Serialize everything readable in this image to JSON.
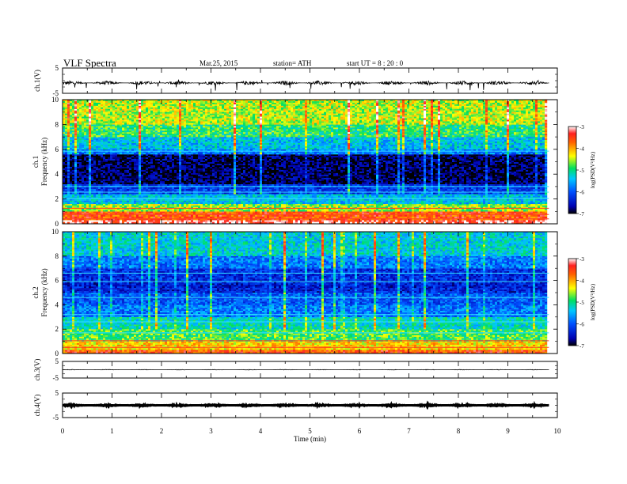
{
  "header": {
    "title": "VLF  Spectra",
    "date": "Mar.25, 2015",
    "station": "station= ATH",
    "start": "start  UT  =   8  : 20 : 0"
  },
  "chart_data": {
    "type": "heatmap",
    "x_axis": {
      "label": "Time  (min)",
      "range": [
        0,
        10
      ],
      "ticks": [
        "0",
        "1",
        "2",
        "3",
        "4",
        "5",
        "6",
        "7",
        "8",
        "9",
        "10"
      ],
      "data_end": 9.83
    },
    "panels": [
      {
        "id": "ch1-waveform",
        "type": "line",
        "ylabel": "ch.1(V)",
        "ylim": [
          -5,
          5
        ],
        "yticks": [
          "5",
          "-5"
        ],
        "baseline": -0.9,
        "noise_amplitude": 0.8,
        "spike_min": -4.0,
        "spike_max": 0.6
      },
      {
        "id": "ch1-spectrogram",
        "type": "heatmap",
        "ylabel_line1": "ch.1",
        "ylabel_line2": "Frequency  (kHz)",
        "ylim": [
          0,
          10
        ],
        "yticks": [
          "0",
          "2",
          "4",
          "6",
          "8",
          "10"
        ],
        "colorbar": {
          "label": "log(PSD(V²/Hz)",
          "range": [
            -7,
            -3
          ],
          "ticks": [
            "-3",
            "-4",
            "-5",
            "-6",
            "-7"
          ]
        },
        "bands_khz": [
          {
            "from": 0.0,
            "to": 0.3,
            "level": -3.2
          },
          {
            "from": 0.3,
            "to": 1.0,
            "level": -3.6
          },
          {
            "from": 1.0,
            "to": 1.6,
            "level": -4.6
          },
          {
            "from": 1.6,
            "to": 2.4,
            "level": -5.4
          },
          {
            "from": 2.4,
            "to": 3.2,
            "level": -6.2
          },
          {
            "from": 3.2,
            "to": 5.6,
            "level": -6.85
          },
          {
            "from": 5.6,
            "to": 6.0,
            "level": -5.8
          },
          {
            "from": 6.0,
            "to": 7.0,
            "level": -5.4
          },
          {
            "from": 7.0,
            "to": 8.0,
            "level": -4.9
          },
          {
            "from": 8.0,
            "to": 10.0,
            "level": -4.5
          }
        ]
      },
      {
        "id": "ch2-spectrogram",
        "type": "heatmap",
        "ylabel_line1": "ch.2",
        "ylabel_line2": "Frequency  (kHz)",
        "ylim": [
          0,
          10
        ],
        "yticks": [
          "0",
          "2",
          "4",
          "6",
          "8",
          "10"
        ],
        "colorbar": {
          "label": "log(PSD(V²/Hz)",
          "range": [
            -7,
            -3
          ],
          "ticks": [
            "-3",
            "-4",
            "-5",
            "-6",
            "-7"
          ]
        },
        "bands_khz": [
          {
            "from": 0.0,
            "to": 0.3,
            "level": -3.6
          },
          {
            "from": 0.3,
            "to": 1.0,
            "level": -4.2
          },
          {
            "from": 1.0,
            "to": 2.0,
            "level": -4.8
          },
          {
            "from": 2.0,
            "to": 3.0,
            "level": -5.2
          },
          {
            "from": 3.0,
            "to": 4.0,
            "level": -5.8
          },
          {
            "from": 4.0,
            "to": 5.0,
            "level": -6.0
          },
          {
            "from": 5.0,
            "to": 6.0,
            "level": -6.4
          },
          {
            "from": 6.0,
            "to": 7.0,
            "level": -6.3
          },
          {
            "from": 7.0,
            "to": 8.0,
            "level": -5.8
          },
          {
            "from": 8.0,
            "to": 10.0,
            "level": -5.3
          }
        ]
      },
      {
        "id": "ch3-waveform",
        "type": "line",
        "ylabel": "ch.3(V)",
        "ylim": [
          -5,
          5
        ],
        "yticks": [
          "5",
          "-5"
        ],
        "baseline": 0.0,
        "noise_amplitude": 0.15
      },
      {
        "id": "ch4-waveform",
        "type": "line",
        "ylabel": "ch.4(V)",
        "ylim": [
          -5,
          5
        ],
        "yticks": [
          "5",
          "-5"
        ],
        "baseline": 0.0,
        "noise_amplitude": 0.3
      }
    ]
  }
}
